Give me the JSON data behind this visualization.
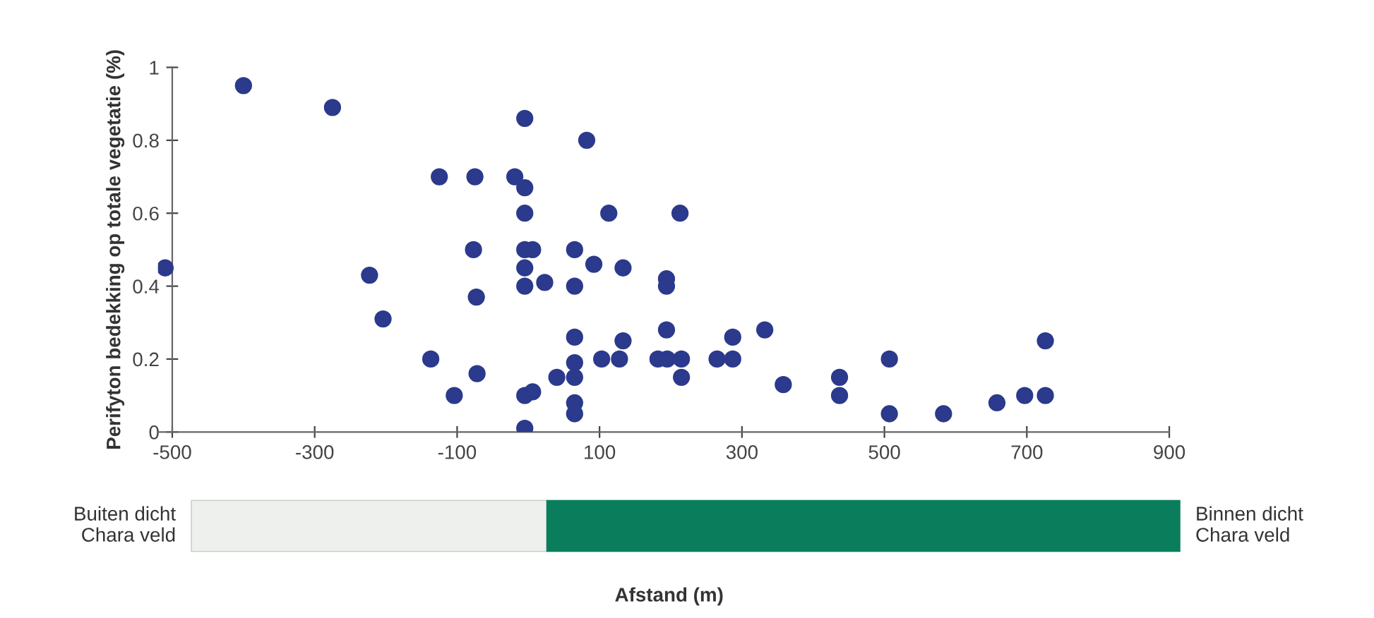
{
  "chart_data": {
    "type": "scatter",
    "ylabel": "Perifyton bedekking op totale vegetatie (%)",
    "series": [
      {
        "color": "#2b3a8c",
        "x": [
          -400,
          -275,
          -510,
          -223,
          -204,
          -137,
          -125,
          -104,
          -75,
          -77,
          -73,
          -72,
          -19,
          -5,
          -5,
          -5,
          -5,
          6,
          -5,
          -5,
          23,
          -5,
          6,
          -5,
          40,
          65,
          65,
          65,
          65,
          65,
          65,
          65,
          82,
          92,
          103,
          113,
          128,
          133,
          133,
          194,
          194,
          194,
          182,
          195,
          215,
          213,
          215,
          265,
          287,
          287,
          332,
          358,
          437,
          437,
          507,
          507,
          583,
          658,
          697,
          726,
          726
        ],
        "values": [
          0.95,
          0.89,
          0.45,
          0.43,
          0.31,
          0.2,
          0.7,
          0.1,
          0.7,
          0.5,
          0.37,
          0.16,
          0.7,
          0.86,
          0.67,
          0.6,
          0.5,
          0.5,
          0.45,
          0.4,
          0.41,
          0.1,
          0.11,
          0.01,
          0.15,
          0.5,
          0.4,
          0.26,
          0.19,
          0.15,
          0.08,
          0.05,
          0.8,
          0.46,
          0.2,
          0.6,
          0.2,
          0.45,
          0.25,
          0.42,
          0.4,
          0.28,
          0.2,
          0.2,
          0.2,
          0.6,
          0.15,
          0.2,
          0.2,
          0.26,
          0.28,
          0.13,
          0.15,
          0.1,
          0.2,
          0.05,
          0.05,
          0.08,
          0.1,
          0.1,
          0.25
        ]
      }
    ],
    "xlim": [
      -520,
      900
    ],
    "xticks": [
      -500,
      -300,
      -100,
      100,
      300,
      500,
      700,
      900
    ],
    "ylim": [
      0,
      1
    ],
    "yticks": [
      0,
      0.2,
      0.4,
      0.6,
      0.8,
      1
    ],
    "marker": "circle",
    "grid": false,
    "legend": false,
    "annotations": [
      "Buiten dicht\nChara veld",
      "Binnen dicht\nChara veld",
      "Afstand (m)"
    ]
  }
}
